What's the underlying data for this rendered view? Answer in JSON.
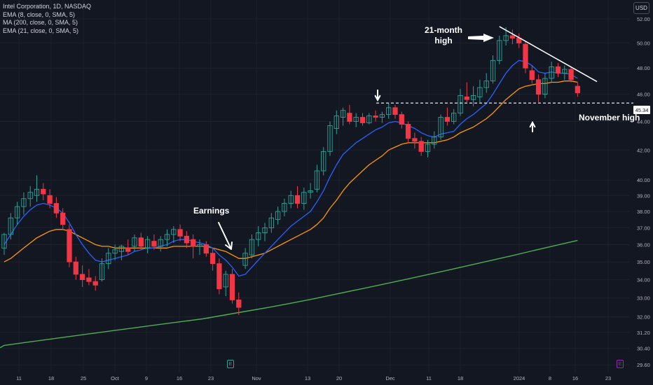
{
  "legend": {
    "title": "Intel Corporation, 1D, NASDAQ",
    "ema8": "EMA (8, close, 0, SMA, 5)",
    "ma200": "MA (200, close, 0, SMA, 5)",
    "ema21": "EMA (21, close, 0, SMA, 5)"
  },
  "currency": "USD",
  "price_tag": "45.34",
  "annotations": {
    "earnings": "Earnings",
    "high21_line1": "21-month",
    "high21_line2": "high",
    "november_high": "November high"
  },
  "events": {
    "earnings_marker": "E",
    "dividend_marker": "E"
  },
  "colors": {
    "background": "#131722",
    "up": "#26a69a",
    "down": "#f23645",
    "ema8": "#2962ff",
    "ema21": "#ff9800",
    "ma200": "#4caf50",
    "annotation": "#ffffff"
  },
  "chart_data": {
    "type": "candlestick",
    "x_ticks": [
      "11",
      "18",
      "25",
      "Oct",
      "9",
      "16",
      "23",
      "Nov",
      "13",
      "20",
      "Dec",
      "11",
      "18",
      "2024",
      "8",
      "16",
      "23"
    ],
    "y_ticks": [
      29.6,
      30.4,
      31.2,
      32.0,
      33.0,
      34.0,
      35.0,
      36.0,
      37.0,
      38.0,
      39.0,
      40.0,
      42.0,
      44.0,
      46.0,
      48.0,
      50.0,
      52.0
    ],
    "y_scale": "log",
    "ylim": [
      29.3,
      52.9
    ],
    "november_high": 45.34,
    "candles": [
      {
        "o": 35.8,
        "h": 36.7,
        "l": 35.4,
        "c": 36.6
      },
      {
        "o": 36.6,
        "h": 37.9,
        "l": 36.3,
        "c": 37.6
      },
      {
        "o": 37.6,
        "h": 38.6,
        "l": 37.2,
        "c": 38.3
      },
      {
        "o": 38.3,
        "h": 39.2,
        "l": 37.8,
        "c": 38.8
      },
      {
        "o": 38.8,
        "h": 39.6,
        "l": 38.3,
        "c": 39.2
      },
      {
        "o": 39.0,
        "h": 40.3,
        "l": 38.6,
        "c": 39.4
      },
      {
        "o": 39.4,
        "h": 39.8,
        "l": 38.7,
        "c": 39.1
      },
      {
        "o": 39.0,
        "h": 39.4,
        "l": 38.2,
        "c": 38.5
      },
      {
        "o": 38.5,
        "h": 38.9,
        "l": 37.6,
        "c": 37.9
      },
      {
        "o": 37.9,
        "h": 38.2,
        "l": 36.9,
        "c": 37.2
      },
      {
        "o": 36.9,
        "h": 37.2,
        "l": 34.7,
        "c": 35.0
      },
      {
        "o": 35.0,
        "h": 35.3,
        "l": 34.0,
        "c": 34.3
      },
      {
        "o": 34.3,
        "h": 34.8,
        "l": 33.6,
        "c": 34.0
      },
      {
        "o": 34.1,
        "h": 34.6,
        "l": 33.7,
        "c": 33.9
      },
      {
        "o": 33.9,
        "h": 34.2,
        "l": 33.4,
        "c": 33.7
      },
      {
        "o": 34.0,
        "h": 35.2,
        "l": 33.9,
        "c": 34.9
      },
      {
        "o": 34.9,
        "h": 35.8,
        "l": 34.6,
        "c": 35.5
      },
      {
        "o": 35.5,
        "h": 36.0,
        "l": 35.1,
        "c": 35.7
      },
      {
        "o": 35.6,
        "h": 36.0,
        "l": 35.1,
        "c": 35.9
      },
      {
        "o": 35.8,
        "h": 36.3,
        "l": 35.4,
        "c": 35.6
      },
      {
        "o": 35.9,
        "h": 36.6,
        "l": 35.6,
        "c": 36.4
      },
      {
        "o": 36.4,
        "h": 36.7,
        "l": 35.7,
        "c": 35.9
      },
      {
        "o": 35.8,
        "h": 36.5,
        "l": 35.5,
        "c": 36.3
      },
      {
        "o": 36.2,
        "h": 36.6,
        "l": 35.7,
        "c": 35.9
      },
      {
        "o": 35.9,
        "h": 36.5,
        "l": 35.6,
        "c": 36.3
      },
      {
        "o": 36.3,
        "h": 36.9,
        "l": 35.9,
        "c": 36.6
      },
      {
        "o": 36.6,
        "h": 37.1,
        "l": 36.1,
        "c": 36.9
      },
      {
        "o": 36.9,
        "h": 37.2,
        "l": 36.2,
        "c": 36.5
      },
      {
        "o": 36.5,
        "h": 36.8,
        "l": 35.8,
        "c": 36.1
      },
      {
        "o": 36.3,
        "h": 36.6,
        "l": 35.2,
        "c": 35.9
      },
      {
        "o": 35.9,
        "h": 36.3,
        "l": 35.4,
        "c": 36.0
      },
      {
        "o": 36.0,
        "h": 36.2,
        "l": 35.3,
        "c": 35.5
      },
      {
        "o": 35.5,
        "h": 35.8,
        "l": 34.5,
        "c": 34.9
      },
      {
        "o": 34.9,
        "h": 35.2,
        "l": 33.2,
        "c": 33.5
      },
      {
        "o": 33.6,
        "h": 34.5,
        "l": 33.1,
        "c": 34.3
      },
      {
        "o": 34.3,
        "h": 34.6,
        "l": 32.7,
        "c": 32.9
      },
      {
        "o": 32.9,
        "h": 33.3,
        "l": 32.1,
        "c": 32.5
      },
      {
        "o": 34.8,
        "h": 35.8,
        "l": 34.6,
        "c": 35.5
      },
      {
        "o": 35.4,
        "h": 36.6,
        "l": 35.2,
        "c": 36.3
      },
      {
        "o": 36.3,
        "h": 37.1,
        "l": 35.9,
        "c": 36.7
      },
      {
        "o": 36.7,
        "h": 37.3,
        "l": 36.2,
        "c": 37.0
      },
      {
        "o": 37.0,
        "h": 37.9,
        "l": 36.7,
        "c": 37.6
      },
      {
        "o": 37.5,
        "h": 38.3,
        "l": 37.2,
        "c": 38.0
      },
      {
        "o": 38.0,
        "h": 38.8,
        "l": 37.7,
        "c": 38.5
      },
      {
        "o": 38.5,
        "h": 39.3,
        "l": 38.2,
        "c": 39.0
      },
      {
        "o": 39.0,
        "h": 39.6,
        "l": 38.2,
        "c": 38.5
      },
      {
        "o": 38.5,
        "h": 39.5,
        "l": 38.1,
        "c": 39.2
      },
      {
        "o": 39.2,
        "h": 39.8,
        "l": 38.8,
        "c": 39.3
      },
      {
        "o": 39.4,
        "h": 41.0,
        "l": 39.2,
        "c": 40.6
      },
      {
        "o": 40.6,
        "h": 42.2,
        "l": 40.3,
        "c": 41.9
      },
      {
        "o": 41.9,
        "h": 44.0,
        "l": 41.6,
        "c": 43.7
      },
      {
        "o": 43.5,
        "h": 44.8,
        "l": 43.1,
        "c": 44.4
      },
      {
        "o": 44.3,
        "h": 45.0,
        "l": 43.7,
        "c": 44.8
      },
      {
        "o": 44.6,
        "h": 45.2,
        "l": 43.8,
        "c": 44.0
      },
      {
        "o": 44.0,
        "h": 44.6,
        "l": 43.6,
        "c": 44.3
      },
      {
        "o": 44.3,
        "h": 44.6,
        "l": 43.7,
        "c": 43.9
      },
      {
        "o": 43.9,
        "h": 44.6,
        "l": 43.8,
        "c": 44.4
      },
      {
        "o": 44.4,
        "h": 44.8,
        "l": 44.0,
        "c": 44.3
      },
      {
        "o": 44.3,
        "h": 44.7,
        "l": 43.9,
        "c": 44.5
      },
      {
        "o": 44.5,
        "h": 45.34,
        "l": 44.2,
        "c": 45.0
      },
      {
        "o": 45.0,
        "h": 45.2,
        "l": 44.2,
        "c": 44.5
      },
      {
        "o": 44.5,
        "h": 44.7,
        "l": 43.5,
        "c": 43.8
      },
      {
        "o": 43.8,
        "h": 44.0,
        "l": 42.5,
        "c": 42.8
      },
      {
        "o": 42.8,
        "h": 43.2,
        "l": 42.1,
        "c": 42.6
      },
      {
        "o": 42.6,
        "h": 42.9,
        "l": 41.6,
        "c": 41.9
      },
      {
        "o": 41.9,
        "h": 42.7,
        "l": 41.5,
        "c": 42.4
      },
      {
        "o": 42.4,
        "h": 43.3,
        "l": 42.1,
        "c": 42.9
      },
      {
        "o": 42.9,
        "h": 44.5,
        "l": 42.7,
        "c": 44.3
      },
      {
        "o": 44.3,
        "h": 45.0,
        "l": 43.7,
        "c": 44.0
      },
      {
        "o": 44.0,
        "h": 44.9,
        "l": 43.8,
        "c": 44.6
      },
      {
        "o": 44.6,
        "h": 46.4,
        "l": 44.4,
        "c": 45.9
      },
      {
        "o": 45.8,
        "h": 46.9,
        "l": 45.4,
        "c": 45.6
      },
      {
        "o": 45.6,
        "h": 46.6,
        "l": 45.1,
        "c": 45.9
      },
      {
        "o": 45.8,
        "h": 47.1,
        "l": 45.4,
        "c": 46.5
      },
      {
        "o": 46.5,
        "h": 47.6,
        "l": 46.1,
        "c": 47.0
      },
      {
        "o": 47.0,
        "h": 49.0,
        "l": 46.8,
        "c": 48.6
      },
      {
        "o": 48.6,
        "h": 50.6,
        "l": 48.3,
        "c": 50.2
      },
      {
        "o": 50.2,
        "h": 51.3,
        "l": 49.8,
        "c": 50.6
      },
      {
        "o": 50.6,
        "h": 51.1,
        "l": 49.9,
        "c": 50.4
      },
      {
        "o": 50.4,
        "h": 50.8,
        "l": 49.6,
        "c": 50.0
      },
      {
        "o": 49.9,
        "h": 50.1,
        "l": 47.6,
        "c": 48.0
      },
      {
        "o": 47.8,
        "h": 48.2,
        "l": 46.8,
        "c": 47.1
      },
      {
        "o": 47.1,
        "h": 47.5,
        "l": 45.4,
        "c": 46.0
      },
      {
        "o": 46.0,
        "h": 47.6,
        "l": 45.7,
        "c": 47.2
      },
      {
        "o": 47.2,
        "h": 48.5,
        "l": 46.9,
        "c": 48.1
      },
      {
        "o": 48.1,
        "h": 48.4,
        "l": 47.3,
        "c": 47.6
      },
      {
        "o": 47.6,
        "h": 48.2,
        "l": 47.1,
        "c": 47.9
      },
      {
        "o": 47.9,
        "h": 48.1,
        "l": 46.9,
        "c": 47.1
      },
      {
        "o": 46.6,
        "h": 46.9,
        "l": 45.8,
        "c": 46.1
      }
    ],
    "series": [
      {
        "name": "EMA (8, close, 0, SMA, 5)",
        "values": [
          36.0,
          36.6,
          37.2,
          37.7,
          38.1,
          38.4,
          38.5,
          38.4,
          38.2,
          37.9,
          37.3,
          36.6,
          36.0,
          35.5,
          35.1,
          35.0,
          35.1,
          35.2,
          35.3,
          35.4,
          35.6,
          35.7,
          35.8,
          35.8,
          35.9,
          36.0,
          36.2,
          36.3,
          36.3,
          36.2,
          36.1,
          36.0,
          35.8,
          35.4,
          35.1,
          34.7,
          34.2,
          34.3,
          34.7,
          35.1,
          35.5,
          35.9,
          36.3,
          36.7,
          37.1,
          37.4,
          37.7,
          38.0,
          38.6,
          39.3,
          40.2,
          41.0,
          41.7,
          42.1,
          42.5,
          42.8,
          43.1,
          43.4,
          43.6,
          43.9,
          44.0,
          43.9,
          43.7,
          43.5,
          43.2,
          43.0,
          42.9,
          43.1,
          43.2,
          43.3,
          43.8,
          44.2,
          44.5,
          44.9,
          45.3,
          46.0,
          46.8,
          47.6,
          48.2,
          48.6,
          48.5,
          48.2,
          47.7,
          47.6,
          47.7,
          47.6,
          47.6,
          47.5,
          47.2
        ]
      },
      {
        "name": "EMA (21, close, 0, SMA, 5)",
        "values": [
          35.0,
          35.2,
          35.5,
          35.8,
          36.1,
          36.4,
          36.6,
          36.8,
          36.9,
          36.9,
          36.8,
          36.6,
          36.4,
          36.2,
          36.0,
          35.9,
          35.9,
          35.8,
          35.8,
          35.8,
          35.8,
          35.8,
          35.8,
          35.8,
          35.8,
          35.8,
          35.9,
          35.9,
          35.9,
          35.9,
          35.9,
          35.9,
          35.8,
          35.7,
          35.6,
          35.4,
          35.2,
          35.2,
          35.3,
          35.4,
          35.5,
          35.7,
          35.9,
          36.1,
          36.3,
          36.5,
          36.7,
          36.9,
          37.2,
          37.6,
          38.2,
          38.7,
          39.3,
          39.8,
          40.2,
          40.6,
          41.0,
          41.3,
          41.6,
          42.0,
          42.2,
          42.4,
          42.5,
          42.5,
          42.5,
          42.5,
          42.5,
          42.6,
          42.7,
          42.9,
          43.2,
          43.4,
          43.6,
          43.9,
          44.2,
          44.6,
          45.1,
          45.6,
          46.0,
          46.4,
          46.6,
          46.7,
          46.8,
          46.8,
          46.9,
          46.9,
          47.0,
          47.0,
          46.9
        ]
      },
      {
        "name": "MA (200, close, 0, SMA, 5)",
        "x_from": 0,
        "x_to": 88,
        "values": [
          30.55,
          30.7,
          30.85,
          31.0,
          31.15,
          31.3,
          31.45,
          31.6,
          31.75,
          31.9,
          32.1,
          32.3,
          32.5,
          32.72,
          32.95,
          33.2,
          33.45,
          33.7,
          33.96,
          34.23,
          34.5,
          34.78,
          35.06,
          35.35,
          35.65,
          35.95,
          36.25
        ]
      }
    ]
  }
}
